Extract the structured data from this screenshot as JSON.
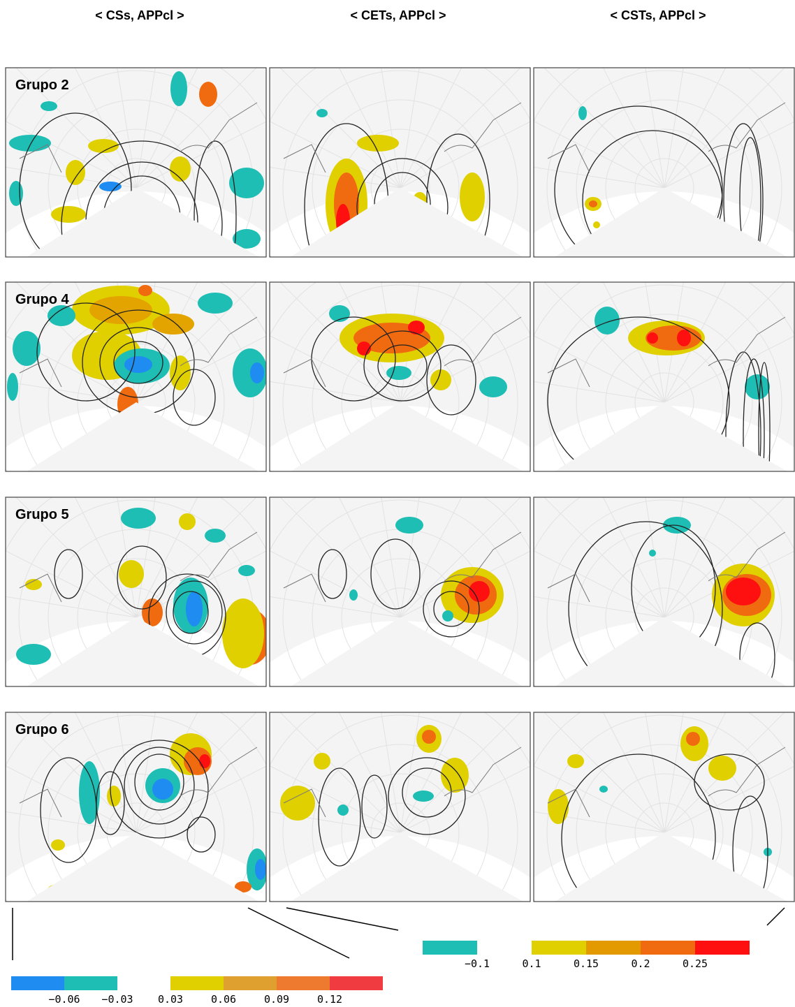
{
  "columns": [
    "< CSs, APPcl >",
    "< CETs, APPcl >",
    "< CSTs, APPcl >"
  ],
  "rows": [
    "Grupo 2",
    "Grupo 4",
    "Grupo 5",
    "Grupo 6"
  ],
  "colorbars": [
    {
      "negative_colors": [
        "#1e8cf0",
        "#1ebeb4"
      ],
      "positive_colors": [
        "#e0d000",
        "#e0a030",
        "#ee7a30",
        "#f03c40"
      ],
      "ticks": [
        {
          "value": -0.06,
          "label": "−0.06"
        },
        {
          "value": -0.03,
          "label": "−0.03"
        },
        {
          "value": 0.03,
          "label": "0.03"
        },
        {
          "value": 0.06,
          "label": "0.06"
        },
        {
          "value": 0.09,
          "label": "0.09"
        },
        {
          "value": 0.12,
          "label": "0.12"
        }
      ]
    },
    {
      "negative_colors": [
        "#1ebeb4"
      ],
      "positive_colors": [
        "#e0d000",
        "#e39a00",
        "#f06a10",
        "#ff1010"
      ],
      "ticks": [
        {
          "value": -0.1,
          "label": "−0.1"
        },
        {
          "value": 0.1,
          "label": "0.1"
        },
        {
          "value": 0.15,
          "label": "0.15"
        },
        {
          "value": 0.2,
          "label": "0.2"
        },
        {
          "value": 0.25,
          "label": "0.25"
        }
      ]
    }
  ]
}
